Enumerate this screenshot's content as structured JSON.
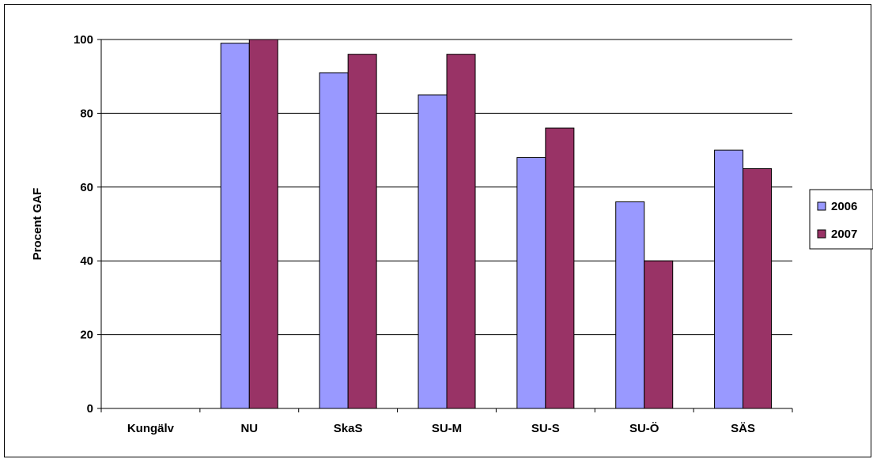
{
  "chart_data": {
    "type": "bar",
    "title": "",
    "xlabel": "",
    "ylabel": "Procent GAF",
    "categories": [
      "Kungälv",
      "NU",
      "SkaS",
      "SU-M",
      "SU-S",
      "SU-Ö",
      "SÄS"
    ],
    "series": [
      {
        "name": "2006",
        "color": "#9999ff",
        "values": [
          null,
          99,
          91,
          85,
          68,
          56,
          70
        ]
      },
      {
        "name": "2007",
        "color": "#993366",
        "values": [
          null,
          100,
          96,
          96,
          76,
          40,
          65
        ]
      }
    ],
    "ylim": [
      0,
      100
    ],
    "yticks": [
      "0",
      "20",
      "40",
      "60",
      "80",
      "100"
    ],
    "grid": true,
    "legend": "right"
  }
}
